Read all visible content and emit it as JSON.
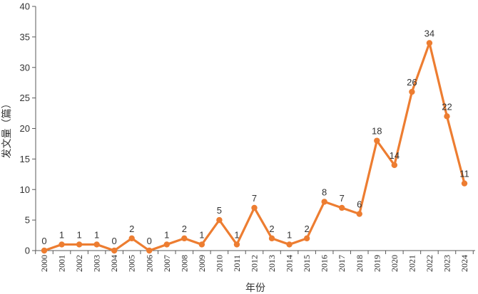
{
  "chart_data": {
    "type": "line",
    "title": "",
    "xlabel": "年份",
    "ylabel": "发文量（篇）",
    "categories": [
      "2000",
      "2001",
      "2002",
      "2003",
      "2004",
      "2005",
      "2006",
      "2007",
      "2008",
      "2009",
      "2010",
      "2011",
      "2012",
      "2013",
      "2014",
      "2015",
      "2016",
      "2017",
      "2018",
      "2019",
      "2020",
      "2021",
      "2022",
      "2023",
      "2024"
    ],
    "series": [
      {
        "values": [
          0,
          1,
          1,
          1,
          0,
          2,
          0,
          1,
          2,
          1,
          5,
          1,
          7,
          2,
          1,
          2,
          8,
          7,
          6,
          18,
          14,
          26,
          34,
          22,
          11
        ]
      }
    ],
    "ylim": [
      0,
      40
    ],
    "y_ticks": [
      0,
      5,
      10,
      15,
      20,
      25,
      30,
      35,
      40
    ],
    "data_labels": true,
    "grid": false,
    "legend": "none",
    "colors": {
      "line": "#ED7D31",
      "axis": "#595959"
    }
  }
}
